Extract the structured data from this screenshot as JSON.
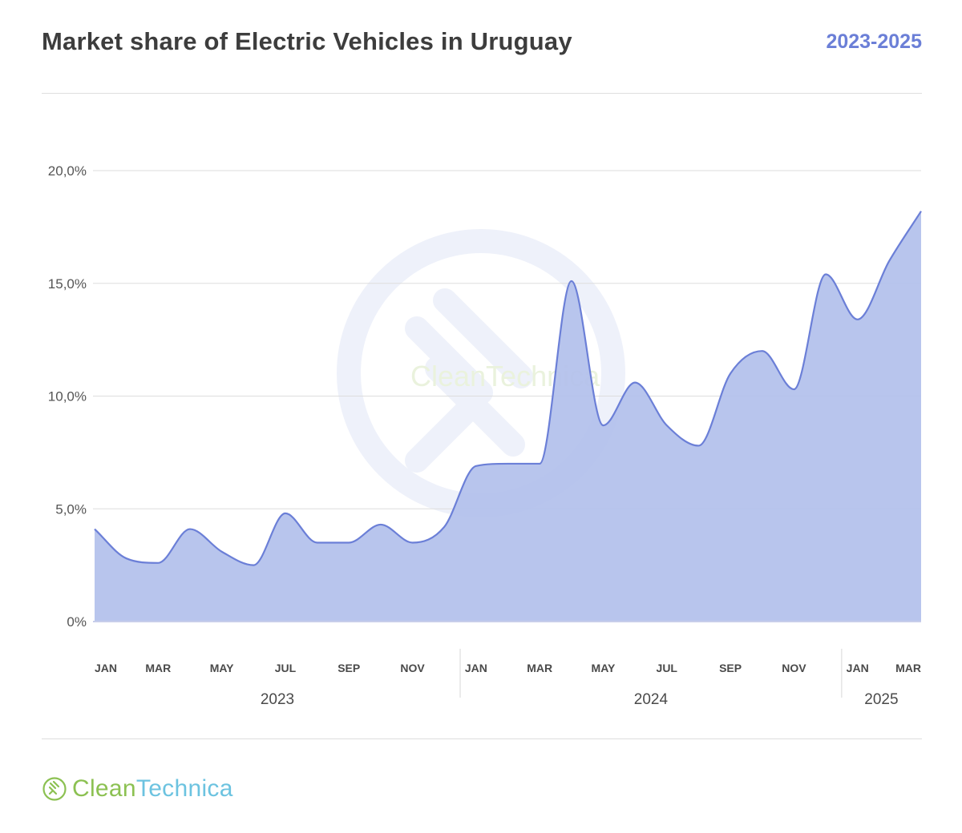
{
  "header": {
    "title": "Market share of Electric Vehicles in Uruguay",
    "period": "2023-2025"
  },
  "brand": {
    "name_part1": "Clean",
    "name_part2": "Technica",
    "icon": "plug-icon",
    "colors": {
      "green": "#8cc152",
      "blue": "#6cc3e0"
    }
  },
  "colors": {
    "series_line": "#6b7fd7",
    "series_fill": "#b2c0eb",
    "accent": "#6b7fd7"
  },
  "chart_data": {
    "type": "area",
    "x": [
      "2023-01",
      "2023-02",
      "2023-03",
      "2023-04",
      "2023-05",
      "2023-06",
      "2023-07",
      "2023-08",
      "2023-09",
      "2023-10",
      "2023-11",
      "2023-12",
      "2024-01",
      "2024-02",
      "2024-03",
      "2024-04",
      "2024-05",
      "2024-06",
      "2024-07",
      "2024-08",
      "2024-09",
      "2024-10",
      "2024-11",
      "2024-12",
      "2025-01",
      "2025-02",
      "2025-03"
    ],
    "y": [
      4.1,
      2.8,
      2.6,
      4.1,
      3.1,
      2.5,
      4.8,
      3.5,
      3.5,
      4.3,
      3.5,
      4.2,
      6.9,
      7.0,
      7.0,
      15.1,
      8.7,
      10.6,
      8.7,
      7.8,
      11.0,
      12.0,
      10.3,
      15.4,
      13.4,
      16.0,
      18.2
    ],
    "series": [
      {
        "values_unit": "%"
      }
    ],
    "yticks": [
      "0%",
      "5,0%",
      "10,0%",
      "15,0%",
      "20,0%"
    ],
    "ytick_values": [
      0,
      5,
      10,
      15,
      20
    ],
    "ylim": [
      0,
      20
    ],
    "xticks": [
      {
        "label": "JAN",
        "month": "2023-01"
      },
      {
        "label": "MAR",
        "month": "2023-03"
      },
      {
        "label": "MAY",
        "month": "2023-05"
      },
      {
        "label": "JUL",
        "month": "2023-07"
      },
      {
        "label": "SEP",
        "month": "2023-09"
      },
      {
        "label": "NOV",
        "month": "2023-11"
      },
      {
        "label": "JAN",
        "month": "2024-01"
      },
      {
        "label": "MAR",
        "month": "2024-03"
      },
      {
        "label": "MAY",
        "month": "2024-05"
      },
      {
        "label": "JUL",
        "month": "2024-07"
      },
      {
        "label": "SEP",
        "month": "2024-09"
      },
      {
        "label": "NOV",
        "month": "2024-11"
      },
      {
        "label": "JAN",
        "month": "2025-01"
      },
      {
        "label": "MAR",
        "month": "2025-03"
      }
    ],
    "years": [
      "2023",
      "2024",
      "2025"
    ],
    "grid": true,
    "watermark": "CleanTechnica"
  }
}
